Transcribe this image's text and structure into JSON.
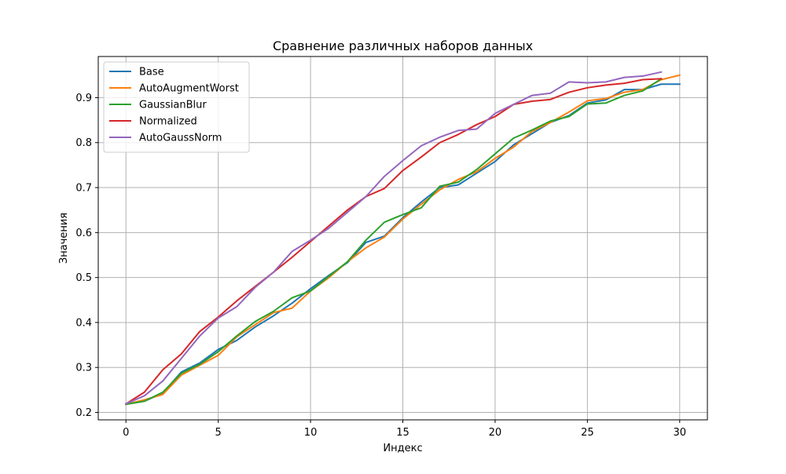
{
  "chart_data": {
    "type": "line",
    "title": "Сравнение различных наборов данных",
    "xlabel": "Индекс",
    "ylabel": "Значения",
    "xlim": [
      -1.5,
      31.5
    ],
    "ylim": [
      0.1835,
      0.9915
    ],
    "xticks": [
      0,
      5,
      10,
      15,
      20,
      25,
      30
    ],
    "yticks": [
      0.2,
      0.3,
      0.4,
      0.5,
      0.6,
      0.7,
      0.8,
      0.9
    ],
    "ytick_labels": [
      "0.2",
      "0.3",
      "0.4",
      "0.5",
      "0.6",
      "0.7",
      "0.8",
      "0.9"
    ],
    "grid": true,
    "legend": "top-left",
    "series": [
      {
        "name": "Base",
        "color": "#1f77b4",
        "values": [
          0.219,
          0.225,
          0.243,
          0.29,
          0.31,
          0.34,
          0.36,
          0.39,
          0.415,
          0.443,
          0.475,
          0.505,
          0.533,
          0.578,
          0.592,
          0.633,
          0.668,
          0.7,
          0.706,
          0.732,
          0.758,
          0.795,
          0.82,
          0.845,
          0.86,
          0.888,
          0.895,
          0.918,
          0.918,
          0.93,
          0.93
        ]
      },
      {
        "name": "AutoAugmentWorst",
        "color": "#ff7f0e",
        "values": [
          0.218,
          0.228,
          0.24,
          0.283,
          0.305,
          0.327,
          0.368,
          0.395,
          0.422,
          0.432,
          0.47,
          0.5,
          0.535,
          0.566,
          0.59,
          0.63,
          0.663,
          0.695,
          0.718,
          0.735,
          0.765,
          0.79,
          0.825,
          0.845,
          0.868,
          0.893,
          0.898,
          0.912,
          0.918,
          0.94,
          0.95
        ]
      },
      {
        "name": "GaussianBlur",
        "color": "#2ca02c",
        "values": [
          0.218,
          0.225,
          0.245,
          0.287,
          0.307,
          0.335,
          0.37,
          0.402,
          0.425,
          0.455,
          0.47,
          0.503,
          0.535,
          0.583,
          0.623,
          0.64,
          0.655,
          0.703,
          0.712,
          0.74,
          0.775,
          0.81,
          0.828,
          0.848,
          0.858,
          0.886,
          0.888,
          0.905,
          0.915,
          0.942
        ]
      },
      {
        "name": "Normalized",
        "color": "#d62728",
        "values": [
          0.219,
          0.245,
          0.295,
          0.33,
          0.38,
          0.412,
          0.448,
          0.48,
          0.512,
          0.545,
          0.58,
          0.615,
          0.65,
          0.68,
          0.698,
          0.738,
          0.768,
          0.8,
          0.818,
          0.84,
          0.858,
          0.885,
          0.892,
          0.896,
          0.912,
          0.922,
          0.928,
          0.932,
          0.94,
          0.942
        ]
      },
      {
        "name": "AutoGaussNorm",
        "color": "#9467bd",
        "values": [
          0.219,
          0.237,
          0.27,
          0.32,
          0.37,
          0.41,
          0.435,
          0.478,
          0.512,
          0.558,
          0.583,
          0.61,
          0.645,
          0.68,
          0.725,
          0.76,
          0.793,
          0.812,
          0.827,
          0.83,
          0.865,
          0.885,
          0.905,
          0.91,
          0.935,
          0.933,
          0.935,
          0.945,
          0.948,
          0.957
        ]
      }
    ]
  }
}
